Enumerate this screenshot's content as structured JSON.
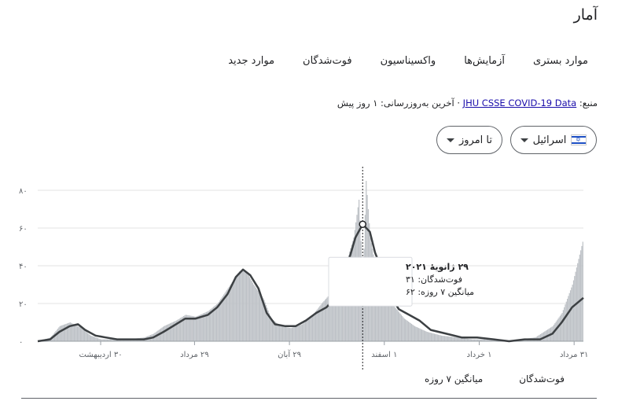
{
  "title": "آمار",
  "tabs": [
    "موارد جدید",
    "فوت‌شدگان",
    "واکسیناسیون",
    "آزمایش‌ها",
    "موارد بستری"
  ],
  "source": {
    "prefix": "منبع:",
    "link": "JHU CSSE COVID-19 Data",
    "suffix": "· آخرین به‌روزرسانی: ۱ روز پیش"
  },
  "filters": {
    "country": "اسرائیل",
    "range": "تا امروز"
  },
  "colors": {
    "bars": "#bdc1c6",
    "line": "#3c4043",
    "marker_line": "#202124",
    "flag_blue": "#1d4fc4"
  },
  "icons": [
    "israel-flag-icon",
    "chevron-down-icon"
  ],
  "tooltip": {
    "date": "۲۹ ژانویهٔ ۲۰۲۱",
    "deaths": "فوت‌شدگان: ۳۱",
    "avg": "میانگین ۷ روزه: ۶۲"
  },
  "legend": {
    "deaths": "فوت‌شدگان",
    "avg": "میانگین ۷ روزه"
  },
  "chart_data": {
    "type": "bar",
    "title": "",
    "ylim": [
      0,
      90
    ],
    "y_ticks": [
      0,
      20,
      40,
      60,
      80
    ],
    "y_tick_labels": [
      "۰",
      "۲۰",
      "۴۰",
      "۶۰",
      "۸۰"
    ],
    "x_range": [
      "2020-03-20",
      "2021-08-31"
    ],
    "x_ticks": [
      {
        "date": "2020-05-20",
        "label": "۳۰ اردیبهشت"
      },
      {
        "date": "2020-08-19",
        "label": "۲۹ مرداد"
      },
      {
        "date": "2020-11-19",
        "label": "۲۹ آبان"
      },
      {
        "date": "2021-02-19",
        "label": "۱ اسفند"
      },
      {
        "date": "2021-05-22",
        "label": "۱ خرداد"
      },
      {
        "date": "2021-08-22",
        "label": "۳۱ مرداد"
      }
    ],
    "grid": true,
    "legend_position": "bottom",
    "highlight": {
      "date": "2021-01-29",
      "deaths": 31,
      "avg": 62
    },
    "series": [
      {
        "name": "فوت‌شدگان",
        "kind": "bar",
        "note": "daily values",
        "points": [
          [
            "2020-03-20",
            0
          ],
          [
            "2020-04-01",
            2
          ],
          [
            "2020-04-10",
            8
          ],
          [
            "2020-04-20",
            10
          ],
          [
            "2020-05-01",
            7
          ],
          [
            "2020-05-10",
            3
          ],
          [
            "2020-05-20",
            1
          ],
          [
            "2020-06-01",
            1
          ],
          [
            "2020-06-15",
            1
          ],
          [
            "2020-07-01",
            2
          ],
          [
            "2020-07-10",
            4
          ],
          [
            "2020-07-20",
            8
          ],
          [
            "2020-08-01",
            11
          ],
          [
            "2020-08-10",
            14
          ],
          [
            "2020-08-20",
            13
          ],
          [
            "2020-09-01",
            16
          ],
          [
            "2020-09-10",
            20
          ],
          [
            "2020-09-20",
            28
          ],
          [
            "2020-10-01",
            37
          ],
          [
            "2020-10-05",
            38
          ],
          [
            "2020-10-10",
            35
          ],
          [
            "2020-10-15",
            30
          ],
          [
            "2020-10-25",
            22
          ],
          [
            "2020-11-01",
            12
          ],
          [
            "2020-11-10",
            8
          ],
          [
            "2020-11-20",
            7
          ],
          [
            "2020-12-01",
            9
          ],
          [
            "2020-12-10",
            13
          ],
          [
            "2020-12-20",
            20
          ],
          [
            "2020-12-28",
            25
          ],
          [
            "2021-01-05",
            30
          ],
          [
            "2021-01-12",
            40
          ],
          [
            "2021-01-20",
            55
          ],
          [
            "2021-01-25",
            75
          ],
          [
            "2021-01-29",
            31
          ],
          [
            "2021-02-01",
            85
          ],
          [
            "2021-02-05",
            55
          ],
          [
            "2021-02-10",
            40
          ],
          [
            "2021-02-15",
            30
          ],
          [
            "2021-02-22",
            22
          ],
          [
            "2021-03-01",
            18
          ],
          [
            "2021-03-10",
            12
          ],
          [
            "2021-03-20",
            8
          ],
          [
            "2021-04-01",
            5
          ],
          [
            "2021-04-15",
            3
          ],
          [
            "2021-05-01",
            2
          ],
          [
            "2021-05-15",
            1
          ],
          [
            "2021-06-01",
            1
          ],
          [
            "2021-06-15",
            0
          ],
          [
            "2021-07-01",
            1
          ],
          [
            "2021-07-15",
            2
          ],
          [
            "2021-08-01",
            8
          ],
          [
            "2021-08-10",
            15
          ],
          [
            "2021-08-20",
            30
          ],
          [
            "2021-08-31",
            55
          ]
        ]
      },
      {
        "name": "میانگین ۷ روزه",
        "kind": "line",
        "points": [
          [
            "2020-03-20",
            0
          ],
          [
            "2020-04-01",
            1
          ],
          [
            "2020-04-10",
            5
          ],
          [
            "2020-04-20",
            8
          ],
          [
            "2020-04-28",
            9
          ],
          [
            "2020-05-05",
            6
          ],
          [
            "2020-05-15",
            3
          ],
          [
            "2020-05-25",
            2
          ],
          [
            "2020-06-05",
            1
          ],
          [
            "2020-06-20",
            1
          ],
          [
            "2020-07-01",
            1
          ],
          [
            "2020-07-10",
            2
          ],
          [
            "2020-07-20",
            5
          ],
          [
            "2020-08-01",
            9
          ],
          [
            "2020-08-10",
            12
          ],
          [
            "2020-08-20",
            12
          ],
          [
            "2020-09-01",
            14
          ],
          [
            "2020-09-10",
            18
          ],
          [
            "2020-09-20",
            25
          ],
          [
            "2020-09-28",
            34
          ],
          [
            "2020-10-05",
            38
          ],
          [
            "2020-10-12",
            35
          ],
          [
            "2020-10-20",
            28
          ],
          [
            "2020-10-28",
            15
          ],
          [
            "2020-11-05",
            9
          ],
          [
            "2020-11-15",
            8
          ],
          [
            "2020-11-25",
            8
          ],
          [
            "2020-12-05",
            11
          ],
          [
            "2020-12-15",
            15
          ],
          [
            "2020-12-25",
            18
          ],
          [
            "2021-01-05",
            25
          ],
          [
            "2021-01-15",
            42
          ],
          [
            "2021-01-22",
            55
          ],
          [
            "2021-01-29",
            62
          ],
          [
            "2021-02-05",
            58
          ],
          [
            "2021-02-10",
            47
          ],
          [
            "2021-02-15",
            40
          ],
          [
            "2021-02-18",
            40
          ],
          [
            "2021-02-25",
            24
          ],
          [
            "2021-03-05",
            17
          ],
          [
            "2021-03-15",
            14
          ],
          [
            "2021-03-25",
            11
          ],
          [
            "2021-04-05",
            6
          ],
          [
            "2021-04-20",
            4
          ],
          [
            "2021-05-05",
            2
          ],
          [
            "2021-05-20",
            2
          ],
          [
            "2021-06-05",
            1
          ],
          [
            "2021-06-20",
            0
          ],
          [
            "2021-07-05",
            1
          ],
          [
            "2021-07-20",
            1
          ],
          [
            "2021-08-01",
            4
          ],
          [
            "2021-08-10",
            10
          ],
          [
            "2021-08-20",
            18
          ],
          [
            "2021-08-31",
            23
          ]
        ]
      }
    ]
  }
}
